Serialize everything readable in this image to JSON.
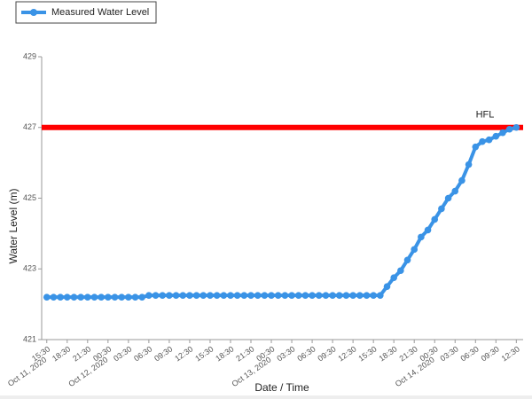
{
  "chart_data": {
    "type": "line",
    "x_label": "Date / Time",
    "y_label": "Water Level (m)",
    "x": [
      "2020-10-11T15:30",
      "2020-10-11T16:30",
      "2020-10-11T17:30",
      "2020-10-11T18:30",
      "2020-10-11T19:30",
      "2020-10-11T20:30",
      "2020-10-11T21:30",
      "2020-10-11T22:30",
      "2020-10-11T23:30",
      "2020-10-12T00:30",
      "2020-10-12T01:30",
      "2020-10-12T02:30",
      "2020-10-12T03:30",
      "2020-10-12T04:30",
      "2020-10-12T05:30",
      "2020-10-12T06:30",
      "2020-10-12T07:30",
      "2020-10-12T08:30",
      "2020-10-12T09:30",
      "2020-10-12T10:30",
      "2020-10-12T11:30",
      "2020-10-12T12:30",
      "2020-10-12T13:30",
      "2020-10-12T14:30",
      "2020-10-12T15:30",
      "2020-10-12T16:30",
      "2020-10-12T17:30",
      "2020-10-12T18:30",
      "2020-10-12T19:30",
      "2020-10-12T20:30",
      "2020-10-12T21:30",
      "2020-10-12T22:30",
      "2020-10-12T23:30",
      "2020-10-13T00:30",
      "2020-10-13T01:30",
      "2020-10-13T02:30",
      "2020-10-13T03:30",
      "2020-10-13T04:30",
      "2020-10-13T05:30",
      "2020-10-13T06:30",
      "2020-10-13T07:30",
      "2020-10-13T08:30",
      "2020-10-13T09:30",
      "2020-10-13T10:30",
      "2020-10-13T11:30",
      "2020-10-13T12:30",
      "2020-10-13T13:30",
      "2020-10-13T14:30",
      "2020-10-13T15:30",
      "2020-10-13T16:30",
      "2020-10-13T17:30",
      "2020-10-13T18:30",
      "2020-10-13T19:30",
      "2020-10-13T20:30",
      "2020-10-13T21:30",
      "2020-10-13T22:30",
      "2020-10-13T23:30",
      "2020-10-14T00:30",
      "2020-10-14T01:30",
      "2020-10-14T02:30",
      "2020-10-14T03:30",
      "2020-10-14T04:30",
      "2020-10-14T05:30",
      "2020-10-14T06:30",
      "2020-10-14T07:30",
      "2020-10-14T08:30",
      "2020-10-14T09:30",
      "2020-10-14T10:30",
      "2020-10-14T11:30",
      "2020-10-14T12:30"
    ],
    "series": [
      {
        "name": "Measured Water Level",
        "color": "#3a93e6",
        "values": [
          422.2,
          422.2,
          422.2,
          422.2,
          422.2,
          422.2,
          422.2,
          422.2,
          422.2,
          422.2,
          422.2,
          422.2,
          422.2,
          422.2,
          422.2,
          422.25,
          422.25,
          422.25,
          422.25,
          422.25,
          422.25,
          422.25,
          422.25,
          422.25,
          422.25,
          422.25,
          422.25,
          422.25,
          422.25,
          422.25,
          422.25,
          422.25,
          422.25,
          422.25,
          422.25,
          422.25,
          422.25,
          422.25,
          422.25,
          422.25,
          422.25,
          422.25,
          422.25,
          422.25,
          422.25,
          422.25,
          422.25,
          422.25,
          422.25,
          422.25,
          422.5,
          422.75,
          422.95,
          423.25,
          423.55,
          423.9,
          424.1,
          424.4,
          424.7,
          425.0,
          425.2,
          425.5,
          425.95,
          426.45,
          426.6,
          426.65,
          426.75,
          426.85,
          426.95,
          427.0
        ]
      }
    ],
    "reference_lines": [
      {
        "value": 427,
        "label": "HFL",
        "color": "#ff0000"
      }
    ],
    "xlim": [
      "2020-10-11T14:45",
      "2020-10-14T13:30"
    ],
    "xticks": [
      {
        "value": "2020-10-11T15:30",
        "label": "15:30"
      },
      {
        "value": "2020-10-11T18:30",
        "label": "18:30"
      },
      {
        "value": "2020-10-11T21:30",
        "label": "21:30"
      },
      {
        "value": "2020-10-12T00:30",
        "label": "00:30"
      },
      {
        "value": "2020-10-12T03:30",
        "label": "03:30"
      },
      {
        "value": "2020-10-12T06:30",
        "label": "06:30"
      },
      {
        "value": "2020-10-12T09:30",
        "label": "09:30"
      },
      {
        "value": "2020-10-12T12:30",
        "label": "12:30"
      },
      {
        "value": "2020-10-12T15:30",
        "label": "15:30"
      },
      {
        "value": "2020-10-12T18:30",
        "label": "18:30"
      },
      {
        "value": "2020-10-12T21:30",
        "label": "21:30"
      },
      {
        "value": "2020-10-13T00:30",
        "label": "00:30"
      },
      {
        "value": "2020-10-13T03:30",
        "label": "03:30"
      },
      {
        "value": "2020-10-13T06:30",
        "label": "06:30"
      },
      {
        "value": "2020-10-13T09:30",
        "label": "09:30"
      },
      {
        "value": "2020-10-13T12:30",
        "label": "12:30"
      },
      {
        "value": "2020-10-13T15:30",
        "label": "15:30"
      },
      {
        "value": "2020-10-13T18:30",
        "label": "18:30"
      },
      {
        "value": "2020-10-13T21:30",
        "label": "21:30"
      },
      {
        "value": "2020-10-14T00:30",
        "label": "00:30"
      },
      {
        "value": "2020-10-14T03:30",
        "label": "03:30"
      },
      {
        "value": "2020-10-14T06:30",
        "label": "06:30"
      },
      {
        "value": "2020-10-14T09:30",
        "label": "09:30"
      },
      {
        "value": "2020-10-14T12:30",
        "label": "12:30"
      }
    ],
    "xtick_dates": [
      {
        "value": "2020-10-11T15:30",
        "label": "Oct 11, 2020"
      },
      {
        "value": "2020-10-12T00:30",
        "label": "Oct 12, 2020"
      },
      {
        "value": "2020-10-13T00:30",
        "label": "Oct 13, 2020"
      },
      {
        "value": "2020-10-14T00:30",
        "label": "Oct 14, 2020"
      }
    ],
    "ylim": [
      421,
      429
    ],
    "yticks": [
      421,
      423,
      425,
      427,
      429
    ],
    "grid": false
  }
}
